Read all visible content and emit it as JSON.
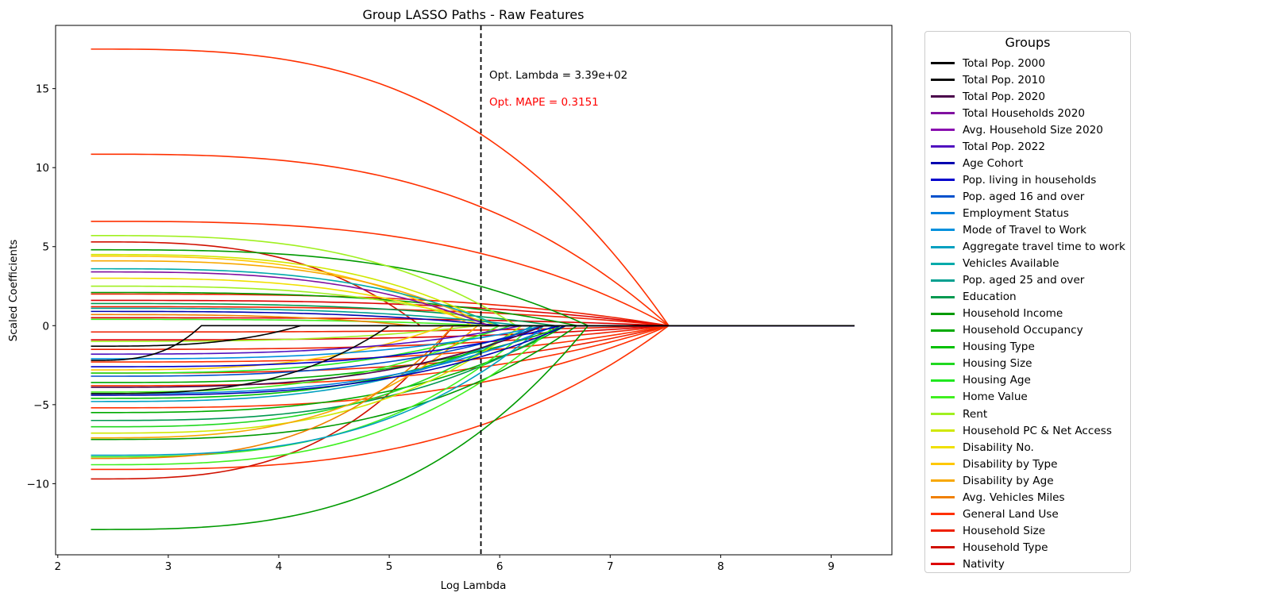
{
  "chart_data": {
    "type": "line",
    "title": "Group LASSO Paths - Raw Features",
    "xlabel": "Log Lambda",
    "ylabel": "Scaled Coefficients",
    "xlim": [
      1.98,
      9.55
    ],
    "ylim": [
      -14.5,
      19.0
    ],
    "xticks": [
      2,
      3,
      4,
      5,
      6,
      7,
      8,
      9
    ],
    "yticks": [
      -10,
      -5,
      0,
      5,
      10,
      15
    ],
    "grid": false,
    "legend": {
      "title": "Groups",
      "placement": "outside-right",
      "entries": [
        {
          "name": "Total Pop. 2000",
          "color": "#000000"
        },
        {
          "name": "Total Pop. 2010",
          "color": "#0a0a0a"
        },
        {
          "name": "Total Pop. 2020",
          "color": "#4a004a"
        },
        {
          "name": "Total Households 2020",
          "color": "#8010a0"
        },
        {
          "name": "Avg. Household Size 2020",
          "color": "#8a10b0"
        },
        {
          "name": "Total Pop. 2022",
          "color": "#5010c0"
        },
        {
          "name": "Age Cohort",
          "color": "#0000b0"
        },
        {
          "name": "Pop. living in households",
          "color": "#0000cc"
        },
        {
          "name": "Pop. aged 16 and over",
          "color": "#0050cc"
        },
        {
          "name": "Employment Status",
          "color": "#0080dd"
        },
        {
          "name": "Mode of Travel to Work",
          "color": "#0090dd"
        },
        {
          "name": "Aggregate travel time to work",
          "color": "#00a0c0"
        },
        {
          "name": "Vehicles Available",
          "color": "#00aaaa"
        },
        {
          "name": "Pop. aged 25 and over",
          "color": "#00a090"
        },
        {
          "name": "Education",
          "color": "#009950"
        },
        {
          "name": "Household Income",
          "color": "#009a00"
        },
        {
          "name": "Household Occupancy",
          "color": "#00aa00"
        },
        {
          "name": "Housing Type",
          "color": "#00c000"
        },
        {
          "name": "Housing Size",
          "color": "#20d820"
        },
        {
          "name": "Housing Age",
          "color": "#20e820"
        },
        {
          "name": "Home Value",
          "color": "#40f020"
        },
        {
          "name": "Rent",
          "color": "#a0f020"
        },
        {
          "name": "Household PC & Net Access",
          "color": "#d0e800"
        },
        {
          "name": "Disability No.",
          "color": "#f0e000"
        },
        {
          "name": "Disability by Type",
          "color": "#ffc800"
        },
        {
          "name": "Disability by Age",
          "color": "#f8a800"
        },
        {
          "name": "Avg. Vehicles Miles",
          "color": "#f08000"
        },
        {
          "name": "General Land Use",
          "color": "#ff3000"
        },
        {
          "name": "Household Size",
          "color": "#ee2000"
        },
        {
          "name": "Household Type",
          "color": "#d01000"
        },
        {
          "name": "Nativity",
          "color": "#dd0000"
        }
      ]
    },
    "annotations": [
      {
        "text": "Opt. Lambda = 3.39e+02",
        "color": "#000000"
      },
      {
        "text": "Opt. MAPE = 0.3151",
        "color": "#ff0000"
      }
    ],
    "optimal_log_lambda": 5.83,
    "x_start": 2.3,
    "x_end": 9.21,
    "series": [
      {
        "color": "#ff3000",
        "start": 17.5,
        "zero_at": 7.53
      },
      {
        "color": "#ff3000",
        "start": 10.85,
        "zero_at": 7.53
      },
      {
        "color": "#ff3000",
        "start": 6.6,
        "zero_at": 7.53
      },
      {
        "color": "#ee2000",
        "start": 2.0,
        "zero_at": 7.53
      },
      {
        "color": "#dd0000",
        "start": 1.6,
        "zero_at": 7.53
      },
      {
        "color": "#ee2000",
        "start": 1.2,
        "zero_at": 7.53
      },
      {
        "color": "#dd0000",
        "start": 0.5,
        "zero_at": 7.53
      },
      {
        "color": "#ee2000",
        "start": -0.4,
        "zero_at": 7.53
      },
      {
        "color": "#dd0000",
        "start": -0.9,
        "zero_at": 7.53
      },
      {
        "color": "#ee2000",
        "start": -1.5,
        "zero_at": 7.53
      },
      {
        "color": "#ff3000",
        "start": -2.3,
        "zero_at": 7.53
      },
      {
        "color": "#ee2000",
        "start": -3.0,
        "zero_at": 7.53
      },
      {
        "color": "#ff3000",
        "start": -3.8,
        "zero_at": 7.53
      },
      {
        "color": "#ff3000",
        "start": -5.2,
        "zero_at": 7.53
      },
      {
        "color": "#ff3000",
        "start": -9.1,
        "zero_at": 7.53
      },
      {
        "color": "#d01000",
        "start": -9.7,
        "zero_at": 5.58
      },
      {
        "color": "#d01000",
        "start": 5.3,
        "zero_at": 5.28
      },
      {
        "color": "#009a00",
        "start": -12.9,
        "zero_at": 6.8
      },
      {
        "color": "#009a00",
        "start": 4.8,
        "zero_at": 6.8
      },
      {
        "color": "#009a00",
        "start": -7.2,
        "zero_at": 6.7
      },
      {
        "color": "#00aa00",
        "start": -5.5,
        "zero_at": 6.6
      },
      {
        "color": "#009a00",
        "start": 2.1,
        "zero_at": 6.7
      },
      {
        "color": "#00aa00",
        "start": -3.6,
        "zero_at": 6.6
      },
      {
        "color": "#009950",
        "start": -6.0,
        "zero_at": 6.55
      },
      {
        "color": "#009950",
        "start": 1.4,
        "zero_at": 6.5
      },
      {
        "color": "#00c000",
        "start": -4.6,
        "zero_at": 6.3
      },
      {
        "color": "#20d820",
        "start": -6.4,
        "zero_at": 6.2
      },
      {
        "color": "#20e820",
        "start": -3.0,
        "zero_at": 6.1
      },
      {
        "color": "#40f020",
        "start": -8.8,
        "zero_at": 6.5
      },
      {
        "color": "#40f020",
        "start": -8.3,
        "zero_at": 6.3
      },
      {
        "color": "#40f020",
        "start": -4.2,
        "zero_at": 6.0
      },
      {
        "color": "#40f020",
        "start": 0.4,
        "zero_at": 5.9
      },
      {
        "color": "#a0f020",
        "start": 5.7,
        "zero_at": 6.15
      },
      {
        "color": "#a0f020",
        "start": 2.5,
        "zero_at": 6.0
      },
      {
        "color": "#a0f020",
        "start": -1.0,
        "zero_at": 5.8
      },
      {
        "color": "#d0e800",
        "start": 4.5,
        "zero_at": 5.95
      },
      {
        "color": "#d0e800",
        "start": -6.8,
        "zero_at": 6.2
      },
      {
        "color": "#f0e000",
        "start": 3.0,
        "zero_at": 5.85
      },
      {
        "color": "#ffc800",
        "start": 4.4,
        "zero_at": 5.75
      },
      {
        "color": "#ffc800",
        "start": -2.8,
        "zero_at": 5.5
      },
      {
        "color": "#f8a800",
        "start": 4.1,
        "zero_at": 5.9
      },
      {
        "color": "#f8a800",
        "start": -7.1,
        "zero_at": 5.8
      },
      {
        "color": "#f08000",
        "start": -8.4,
        "zero_at": 5.58
      },
      {
        "color": "#f08000",
        "start": 0.7,
        "zero_at": 5.2
      },
      {
        "color": "#00a0c0",
        "start": -8.2,
        "zero_at": 6.4
      },
      {
        "color": "#00a0c0",
        "start": -4.8,
        "zero_at": 6.3
      },
      {
        "color": "#0080dd",
        "start": -4.3,
        "zero_at": 6.5
      },
      {
        "color": "#0090dd",
        "start": -2.1,
        "zero_at": 6.4
      },
      {
        "color": "#00aaaa",
        "start": 3.6,
        "zero_at": 6.0
      },
      {
        "color": "#00a090",
        "start": 1.1,
        "zero_at": 6.2
      },
      {
        "color": "#0050cc",
        "start": -3.2,
        "zero_at": 6.4
      },
      {
        "color": "#0000cc",
        "start": -2.6,
        "zero_at": 6.55
      },
      {
        "color": "#0000b0",
        "start": -4.4,
        "zero_at": 6.6
      },
      {
        "color": "#0000b0",
        "start": 0.9,
        "zero_at": 6.0
      },
      {
        "color": "#5010c0",
        "start": -1.8,
        "zero_at": 6.2
      },
      {
        "color": "#8010a0",
        "start": 3.4,
        "zero_at": 5.9
      },
      {
        "color": "#4a004a",
        "start": -3.9,
        "zero_at": 6.4
      },
      {
        "color": "#000000",
        "start": -1.3,
        "zero_at": 4.2
      },
      {
        "color": "#0a0a0a",
        "start": -4.3,
        "zero_at": 5.0
      },
      {
        "color": "#000000",
        "start": -2.2,
        "zero_at": 3.3
      }
    ]
  }
}
